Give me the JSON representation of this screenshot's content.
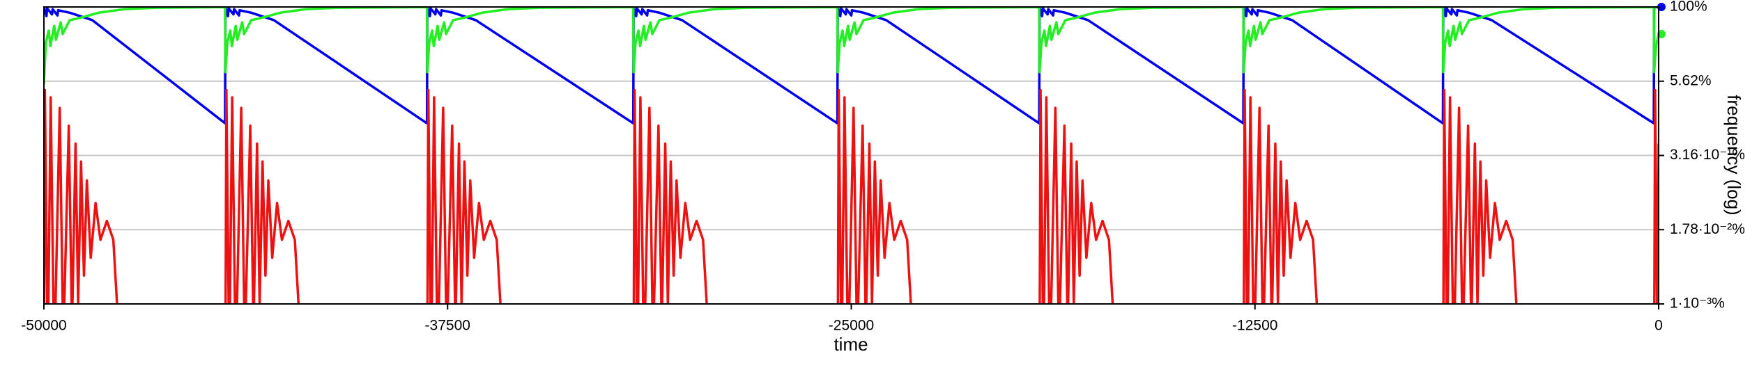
{
  "chart_data": {
    "type": "line",
    "xlabel": "time",
    "ylabel": "frequency (log)",
    "xlim": [
      -50000,
      0
    ],
    "xticks": [
      -50000,
      -37500,
      -25000,
      -12500,
      0
    ],
    "ylim": [
      0.001,
      100
    ],
    "yscale": "log",
    "grid": true,
    "yticks": [
      {
        "value": 0.001,
        "label": "1·10⁻³%"
      },
      {
        "value": 0.0178,
        "label": "1.78·10⁻²%"
      },
      {
        "value": 0.316,
        "label": "3.16·10⁻¹%"
      },
      {
        "value": 5.62,
        "label": "5.62%"
      },
      {
        "value": 100,
        "label": "100%"
      }
    ],
    "series": [
      {
        "color": "#0000ee",
        "end_marker": true,
        "x": [
          -50000,
          -49920,
          -49900,
          -49750,
          -49730,
          -49580,
          -49560,
          -49200,
          -48500,
          -44390,
          -44380,
          -44300,
          -44280,
          -44130,
          -44110,
          -43960,
          -43940,
          -43580,
          -42880,
          -38138,
          -38128,
          -38048,
          -38028,
          -37878,
          -37858,
          -37708,
          -37688,
          -37328,
          -36628,
          -31750,
          -31740,
          -31660,
          -31640,
          -31490,
          -31470,
          -31320,
          -31300,
          -30940,
          -30240,
          -25429,
          -25419,
          -25339,
          -25319,
          -25169,
          -25149,
          -24999,
          -24979,
          -24619,
          -23919,
          -19180,
          -19170,
          -19090,
          -19070,
          -18920,
          -18900,
          -18750,
          -18730,
          -18370,
          -17670,
          -12860,
          -12850,
          -12770,
          -12750,
          -12600,
          -12580,
          -12430,
          -12410,
          -12050,
          -11350,
          -6680,
          -6670,
          -6590,
          -6570,
          -6420,
          -6400,
          -6250,
          -6230,
          -5870,
          -5170,
          -150,
          -140,
          0
        ],
        "values": [
          100,
          70,
          95,
          75,
          92,
          72,
          88,
          80,
          60,
          1.1,
          100,
          70,
          95,
          75,
          92,
          72,
          88,
          80,
          60,
          1.1,
          100,
          70,
          95,
          75,
          92,
          72,
          88,
          80,
          60,
          1.1,
          100,
          70,
          95,
          75,
          92,
          72,
          88,
          80,
          60,
          1.1,
          100,
          70,
          95,
          75,
          92,
          72,
          88,
          80,
          60,
          1.1,
          100,
          70,
          95,
          75,
          92,
          72,
          88,
          80,
          60,
          1.1,
          100,
          70,
          95,
          75,
          92,
          72,
          88,
          80,
          60,
          1.1,
          100,
          70,
          95,
          75,
          92,
          72,
          88,
          80,
          60,
          1.1,
          100,
          100
        ]
      },
      {
        "color": "#22ee22",
        "end_marker": true,
        "x": [
          -50000,
          -49940,
          -49850,
          -49800,
          -49680,
          -49630,
          -49480,
          -49420,
          -49200,
          -48900,
          -48300,
          -47500,
          -46500,
          -44390,
          -44380,
          -44320,
          -44230,
          -44180,
          -44060,
          -44010,
          -43860,
          -43800,
          -43580,
          -43280,
          -42680,
          -41880,
          -40880,
          -38138,
          -38128,
          -38068,
          -37978,
          -37928,
          -37808,
          -37758,
          -37608,
          -37548,
          -37328,
          -37028,
          -36428,
          -35628,
          -34628,
          -31750,
          -31740,
          -31680,
          -31590,
          -31540,
          -31420,
          -31370,
          -31220,
          -31160,
          -30940,
          -30640,
          -30040,
          -29240,
          -28240,
          -25429,
          -25419,
          -25359,
          -25269,
          -25219,
          -25099,
          -25049,
          -24899,
          -24839,
          -24619,
          -24319,
          -23719,
          -22919,
          -21919,
          -19180,
          -19170,
          -19110,
          -19020,
          -18970,
          -18850,
          -18800,
          -18650,
          -18590,
          -18370,
          -18070,
          -17470,
          -16670,
          -15670,
          -12860,
          -12850,
          -12790,
          -12700,
          -12650,
          -12530,
          -12480,
          -12330,
          -12270,
          -12050,
          -11750,
          -11150,
          -10350,
          -9350,
          -6680,
          -6670,
          -6610,
          -6520,
          -6470,
          -6350,
          -6300,
          -6150,
          -6090,
          -5870,
          -5570,
          -4970,
          -4170,
          -3170,
          -150,
          -140,
          -80,
          0
        ],
        "values": [
          5,
          25,
          40,
          22,
          48,
          28,
          55,
          35,
          60,
          65,
          80,
          92,
          97,
          99.5,
          8,
          25,
          40,
          22,
          48,
          28,
          55,
          35,
          60,
          65,
          80,
          92,
          97,
          99.5,
          8,
          25,
          40,
          22,
          48,
          28,
          55,
          35,
          60,
          65,
          80,
          92,
          97,
          99.5,
          8,
          25,
          40,
          22,
          48,
          28,
          55,
          35,
          60,
          65,
          80,
          92,
          97,
          99.5,
          8,
          25,
          40,
          22,
          48,
          28,
          55,
          35,
          60,
          65,
          80,
          92,
          97,
          99.5,
          8,
          25,
          40,
          22,
          48,
          28,
          55,
          35,
          60,
          65,
          80,
          92,
          97,
          99.5,
          8,
          25,
          40,
          22,
          48,
          28,
          55,
          35,
          60,
          65,
          80,
          92,
          97,
          99.5,
          8,
          25,
          40,
          22,
          48,
          28,
          55,
          35,
          60,
          65,
          80,
          92,
          97,
          99.5,
          8,
          22,
          35
        ]
      },
      {
        "color": "#ee1111",
        "x": [
          -50000,
          -49970,
          -49880,
          -49790,
          -49680,
          -49510,
          -49400,
          -49230,
          -49130,
          -49020,
          -48940,
          -48850,
          -48760,
          -48670,
          -48550,
          -48400,
          -48250,
          -48050,
          -47850,
          -47630,
          -44380,
          -44350,
          -44260,
          -44170,
          -44060,
          -43890,
          -43780,
          -43610,
          -43510,
          -43400,
          -43320,
          -43230,
          -43140,
          -43050,
          -42930,
          -42780,
          -42630,
          -42430,
          -42230,
          -42010,
          -38128,
          -38098,
          -38008,
          -37918,
          -37808,
          -37638,
          -37528,
          -37358,
          -37258,
          -37148,
          -37068,
          -36978,
          -36888,
          -36798,
          -36678,
          -36528,
          -36378,
          -36178,
          -35978,
          -35758,
          -31740,
          -31710,
          -31620,
          -31530,
          -31420,
          -31250,
          -31140,
          -30970,
          -30870,
          -30760,
          -30680,
          -30590,
          -30500,
          -30410,
          -30290,
          -30140,
          -29990,
          -29790,
          -29590,
          -29370,
          -25419,
          -25389,
          -25299,
          -25209,
          -25099,
          -24929,
          -24819,
          -24649,
          -24549,
          -24439,
          -24359,
          -24269,
          -24179,
          -24089,
          -23969,
          -23819,
          -23669,
          -23469,
          -23269,
          -23049,
          -19170,
          -19140,
          -19050,
          -18960,
          -18850,
          -18680,
          -18570,
          -18400,
          -18300,
          -18190,
          -18110,
          -18020,
          -17930,
          -17840,
          -17720,
          -17570,
          -17420,
          -17220,
          -17020,
          -16800,
          -12850,
          -12820,
          -12730,
          -12640,
          -12530,
          -12360,
          -12250,
          -12080,
          -11980,
          -11870,
          -11790,
          -11700,
          -11610,
          -11520,
          -11400,
          -11250,
          -11100,
          -10900,
          -10700,
          -10480,
          -6670,
          -6640,
          -6550,
          -6460,
          -6350,
          -6180,
          -6070,
          -5900,
          -5800,
          -5690,
          -5610,
          -5520,
          -5430,
          -5340,
          -5220,
          -5070,
          -4920,
          -4720,
          -4520,
          -4300,
          -140,
          -110,
          -30,
          0
        ],
        "values": [
          0.0001,
          4,
          0.0001,
          3,
          0.0001,
          2,
          0.0002,
          1,
          0.0004,
          0.5,
          0.001,
          0.25,
          0.003,
          0.12,
          0.006,
          0.05,
          0.012,
          0.025,
          0.012,
          0.0001,
          0.0001,
          4,
          0.0001,
          3,
          0.0001,
          2,
          0.0002,
          1,
          0.0004,
          0.5,
          0.001,
          0.25,
          0.003,
          0.12,
          0.006,
          0.05,
          0.012,
          0.025,
          0.012,
          0.0001,
          0.0001,
          4,
          0.0001,
          3,
          0.0001,
          2,
          0.0002,
          1,
          0.0004,
          0.5,
          0.001,
          0.25,
          0.003,
          0.12,
          0.006,
          0.05,
          0.012,
          0.025,
          0.012,
          0.0001,
          0.0001,
          4,
          0.0001,
          3,
          0.0001,
          2,
          0.0002,
          1,
          0.0004,
          0.5,
          0.001,
          0.25,
          0.003,
          0.12,
          0.006,
          0.05,
          0.012,
          0.025,
          0.012,
          0.0001,
          0.0001,
          4,
          0.0001,
          3,
          0.0001,
          2,
          0.0002,
          1,
          0.0004,
          0.5,
          0.001,
          0.25,
          0.003,
          0.12,
          0.006,
          0.05,
          0.012,
          0.025,
          0.012,
          0.0001,
          0.0001,
          4,
          0.0001,
          3,
          0.0001,
          2,
          0.0002,
          1,
          0.0004,
          0.5,
          0.001,
          0.25,
          0.003,
          0.12,
          0.006,
          0.05,
          0.012,
          0.025,
          0.012,
          0.0001,
          0.0001,
          4,
          0.0001,
          3,
          0.0001,
          2,
          0.0002,
          1,
          0.0004,
          0.5,
          0.001,
          0.25,
          0.003,
          0.12,
          0.006,
          0.05,
          0.012,
          0.025,
          0.012,
          0.0001,
          0.0001,
          4,
          0.0001,
          3,
          0.0001,
          2,
          0.0002,
          1,
          0.0004,
          0.5,
          0.001,
          0.25,
          0.003,
          0.12,
          0.006,
          0.05,
          0.012,
          0.025,
          0.012,
          0.0001,
          0.0001,
          4,
          0.0001,
          0.5
        ]
      }
    ]
  }
}
